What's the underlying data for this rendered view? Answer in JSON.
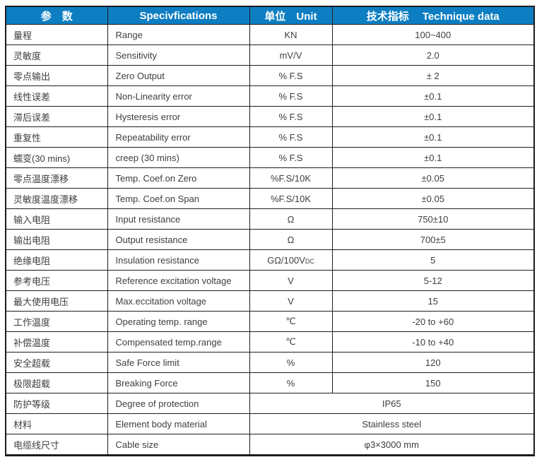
{
  "table": {
    "header": {
      "parameter": "参　数",
      "specifications": "Specivfications",
      "unit": "单位　Unit",
      "technique_data": "技术指标　 Technique data"
    },
    "rows": [
      {
        "param_cn": "量程",
        "spec": "Range",
        "unit": "KN",
        "value": "100~400"
      },
      {
        "param_cn": "灵敏度",
        "spec": "Sensitivity",
        "unit": "mV/V",
        "value": "2.0"
      },
      {
        "param_cn": "零点输出",
        "spec": "Zero Output",
        "unit": "% F.S",
        "value": "± 2"
      },
      {
        "param_cn": "线性误差",
        "spec": "Non-Linearity error",
        "unit": "% F.S",
        "value": "±0.1"
      },
      {
        "param_cn": "滞后误差",
        "spec": "Hysteresis error",
        "unit": "% F.S",
        "value": "±0.1"
      },
      {
        "param_cn": "重复性",
        "spec": "Repeatability error",
        "unit": "% F.S",
        "value": "±0.1"
      },
      {
        "param_cn": "蠕变(30 mins)",
        "spec": "creep (30 mins)",
        "unit": "% F.S",
        "value": "±0.1"
      },
      {
        "param_cn": "零点温度漂移",
        "spec": "Temp. Coef.on Zero",
        "unit": "%F.S/10K",
        "value": "±0.05"
      },
      {
        "param_cn": "灵敏度温度漂移",
        "spec": "Temp. Coef.on Span",
        "unit": "%F.S/10K",
        "value": "±0.05"
      },
      {
        "param_cn": "输入电阻",
        "spec": "Input resistance",
        "unit": "Ω",
        "value": "750±10"
      },
      {
        "param_cn": "输出电阻",
        "spec": "Output resistance",
        "unit": "Ω",
        "value": "700±5"
      },
      {
        "param_cn": "绝缘电阻",
        "spec": "Insulation resistance",
        "unit": "GΩ/100V",
        "unit_sub": "DC",
        "value": "5"
      },
      {
        "param_cn": "参考电压",
        "spec": "Reference excitation voltage",
        "unit": "V",
        "value": "5-12"
      },
      {
        "param_cn": "最大使用电压",
        "spec": "Max.eccitation voltage",
        "unit": "V",
        "value": "15"
      },
      {
        "param_cn": "工作温度",
        "spec": "Operating temp. range",
        "unit": "℃",
        "value": "-20 to +60"
      },
      {
        "param_cn": "补偿温度",
        "spec": "Compensated temp.range",
        "unit": "℃",
        "value": "-10 to +40"
      },
      {
        "param_cn": "安全超载",
        "spec": "Safe Force limit",
        "unit": "%",
        "value": "120"
      },
      {
        "param_cn": "极限超载",
        "spec": "Breaking Force",
        "unit": "%",
        "value": "150"
      },
      {
        "param_cn": "防护等级",
        "spec": "Degree of protection",
        "merged_value": "IP65"
      },
      {
        "param_cn": "材料",
        "spec": "Element body material",
        "merged_value": "Stainless steel"
      },
      {
        "param_cn": "电缆线尺寸",
        "spec": "Cable size",
        "merged_value": "φ3×3000 mm"
      }
    ]
  },
  "colors": {
    "header_bg": "#0d7ec2",
    "header_text": "#ffffff",
    "body_text": "#3e3e3e",
    "border": "#1d1d1d"
  }
}
